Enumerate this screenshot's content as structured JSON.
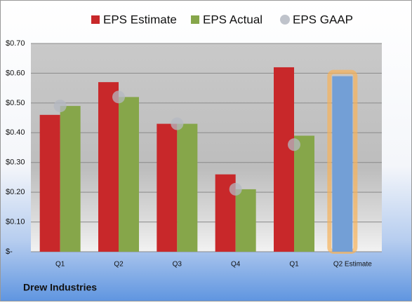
{
  "chart_data": {
    "type": "bar",
    "title": "Drew Industries",
    "categories": [
      "Q1",
      "Q2",
      "Q3",
      "Q4",
      "Q1",
      "Q2 Estimate"
    ],
    "series": [
      {
        "name": "EPS Estimate",
        "color": "#c8282a",
        "values": [
          0.46,
          0.57,
          0.43,
          0.26,
          0.62,
          0.59
        ]
      },
      {
        "name": "EPS Actual",
        "color": "#86a64a",
        "values": [
          0.49,
          0.52,
          0.43,
          0.21,
          0.39,
          null
        ]
      },
      {
        "name": "EPS GAAP",
        "color": "#b4b8c2",
        "marker": "circle",
        "values": [
          0.49,
          0.52,
          0.43,
          0.21,
          0.36,
          null
        ]
      }
    ],
    "highlight": {
      "index": 5,
      "color": "#739fd6",
      "glow": "#f6b25a"
    },
    "ylim": [
      0,
      0.7
    ],
    "yticks": [
      {
        "value": 0,
        "label": "$-"
      },
      {
        "value": 0.1,
        "label": "$0.10"
      },
      {
        "value": 0.2,
        "label": "$0.20"
      },
      {
        "value": 0.3,
        "label": "$0.30"
      },
      {
        "value": 0.4,
        "label": "$0.40"
      },
      {
        "value": 0.5,
        "label": "$0.50"
      },
      {
        "value": 0.6,
        "label": "$0.60"
      },
      {
        "value": 0.7,
        "label": "$0.70"
      }
    ],
    "grid": true
  }
}
